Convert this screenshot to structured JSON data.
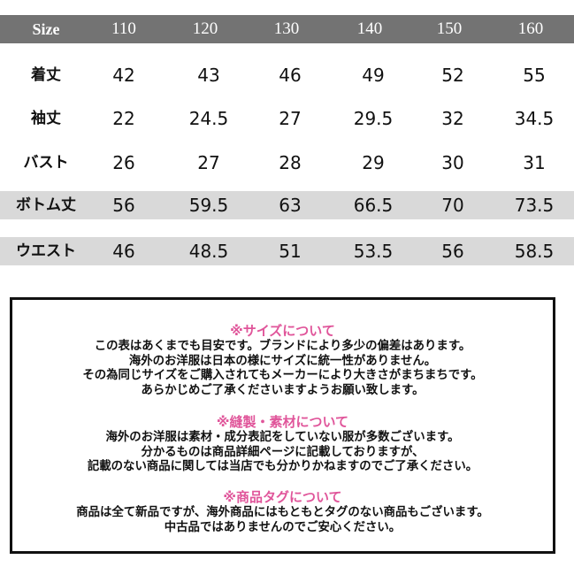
{
  "table": {
    "header": {
      "label": "Size",
      "sizes": [
        "110",
        "120",
        "130",
        "140",
        "150",
        "160"
      ]
    },
    "rows": [
      {
        "label": "着丈",
        "values": [
          "42",
          "43",
          "46",
          "49",
          "52",
          "55"
        ]
      },
      {
        "label": "袖丈",
        "values": [
          "22",
          "24.5",
          "27",
          "29.5",
          "32",
          "34.5"
        ]
      },
      {
        "label": "バスト",
        "values": [
          "26",
          "27",
          "28",
          "29",
          "30",
          "31"
        ]
      },
      {
        "label": "ボトム丈",
        "values": [
          "56",
          "59.5",
          "63",
          "66.5",
          "70",
          "73.5"
        ]
      },
      {
        "label": "ウエスト",
        "values": [
          "46",
          "48.5",
          "51",
          "53.5",
          "56",
          "58.5"
        ]
      }
    ],
    "colors": {
      "header_bg": "#737373",
      "band_bg": "#d9d9d9"
    }
  },
  "notice": {
    "accent_color": "#e0559a",
    "sections": [
      {
        "heading": "※サイズについて",
        "lines": [
          "この表はあくまでも目安です。ブランドにより多少の偏差はあります。",
          "海外のお洋服は日本の様にサイズに統一性がありません。",
          "その為同じサイズをご購入されてもメーカーにより大きさがまちまちです。",
          "あらかじめご了承くださいますようお願い致します。"
        ]
      },
      {
        "heading": "※縫製・素材について",
        "lines": [
          "海外のお洋服は素材・成分表記をしていない服が多数ございます。",
          "分かるものは商品詳細ページに記載しておりますが、",
          "記載のない商品に関しては当店でも分かりかねますのでご了承ください。"
        ]
      },
      {
        "heading": "※商品タグについて",
        "lines": [
          "商品は全て新品ですが、海外商品にはもともとタグのない商品もございます。",
          "中古品ではありませんのでご安心ください。"
        ]
      }
    ]
  }
}
